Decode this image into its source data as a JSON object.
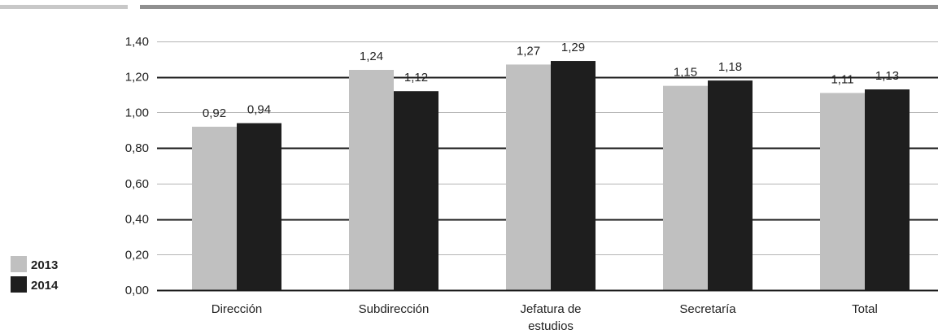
{
  "chart_data": {
    "type": "bar",
    "categories": [
      "Dirección",
      "Subdirección",
      "Jefatura de estudios",
      "Secretaría",
      "Total"
    ],
    "series": [
      {
        "name": "2013",
        "values": [
          0.92,
          1.24,
          1.27,
          1.15,
          1.11
        ],
        "color": "#c0c0c0"
      },
      {
        "name": "2014",
        "values": [
          0.94,
          1.12,
          1.29,
          1.18,
          1.13
        ],
        "color": "#1e1e1e"
      }
    ],
    "value_labels": [
      [
        "0,92",
        "1,24",
        "1,27",
        "1,15",
        "1,11"
      ],
      [
        "0,94",
        "1,12",
        "1,29",
        "1,18",
        "1,13"
      ]
    ],
    "y_ticks": [
      "0,00",
      "0,20",
      "0,40",
      "0,60",
      "0,80",
      "1,00",
      "1,20",
      "1,40"
    ],
    "ylim": [
      0,
      1.4
    ],
    "legend_position": "bottom-left",
    "grid": true,
    "title": "",
    "xlabel": "",
    "ylabel": ""
  }
}
